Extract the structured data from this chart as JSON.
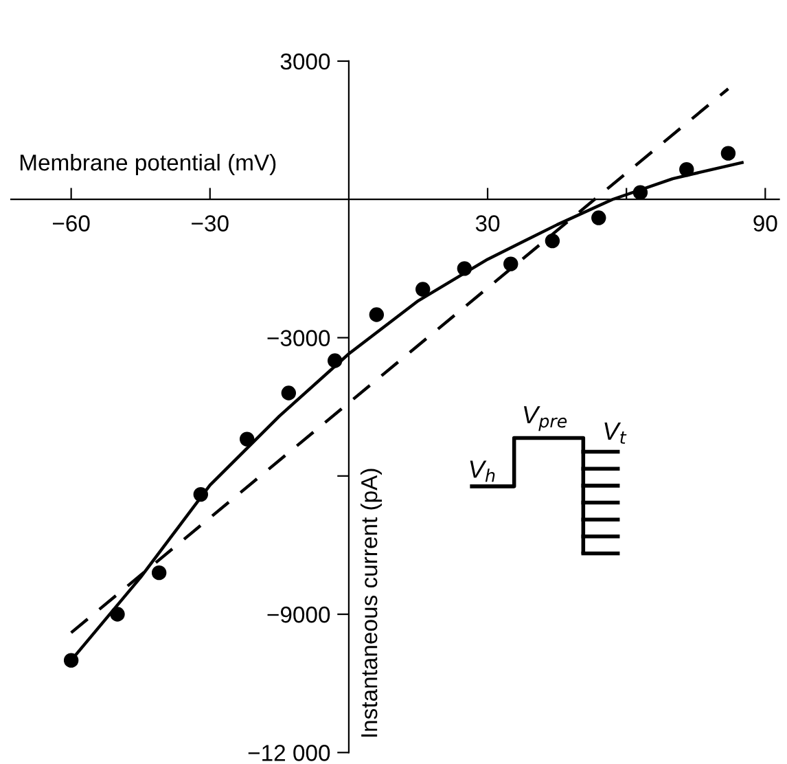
{
  "chart_data": {
    "type": "scatter",
    "xlabel": "Membrane potential (mV)",
    "ylabel": "Instantaneous current (pA)",
    "xlim": [
      -73,
      93
    ],
    "ylim": [
      -12000,
      3000
    ],
    "xticks": [
      {
        "value": -60,
        "label": "−60"
      },
      {
        "value": -30,
        "label": "−30"
      },
      30,
      {
        "value": 60,
        "label": null
      },
      90
    ],
    "yticks": [
      3000,
      {
        "value": -3000,
        "label": "−3000"
      },
      {
        "value": -6000,
        "label": null
      },
      {
        "value": -9000,
        "label": "−9000"
      },
      {
        "value": -12000,
        "label": "−12 000"
      }
    ],
    "grid": false,
    "series": [
      {
        "color": "#000000",
        "marker": "circle",
        "x": [
          -60,
          -50,
          -41,
          -32,
          -22,
          -13,
          -3,
          6,
          16,
          25,
          35,
          44,
          54,
          63,
          73,
          82
        ],
        "values": [
          -10000,
          -9000,
          -8100,
          -6400,
          -5200,
          -4200,
          -3500,
          -2500,
          -1950,
          -1500,
          -1400,
          -900,
          -400,
          150,
          650,
          1000
        ]
      },
      {
        "type": "line",
        "color": "#000000",
        "marker": "none",
        "line_style": "solid",
        "x": [
          -60,
          -45,
          -30,
          -15,
          0,
          15,
          30,
          45,
          57,
          70,
          85
        ],
        "values": [
          -10000,
          -8200,
          -6200,
          -4700,
          -3350,
          -2200,
          -1300,
          -550,
          0,
          450,
          800
        ]
      },
      {
        "type": "line",
        "color": "#000000",
        "marker": "none",
        "line_style": "dashed",
        "x": [
          -60,
          82
        ],
        "values": [
          -9400,
          2400
        ]
      }
    ],
    "annotations": [
      "V$_{h}$",
      "V$_{pre}$",
      "V$_{t}$"
    ]
  }
}
